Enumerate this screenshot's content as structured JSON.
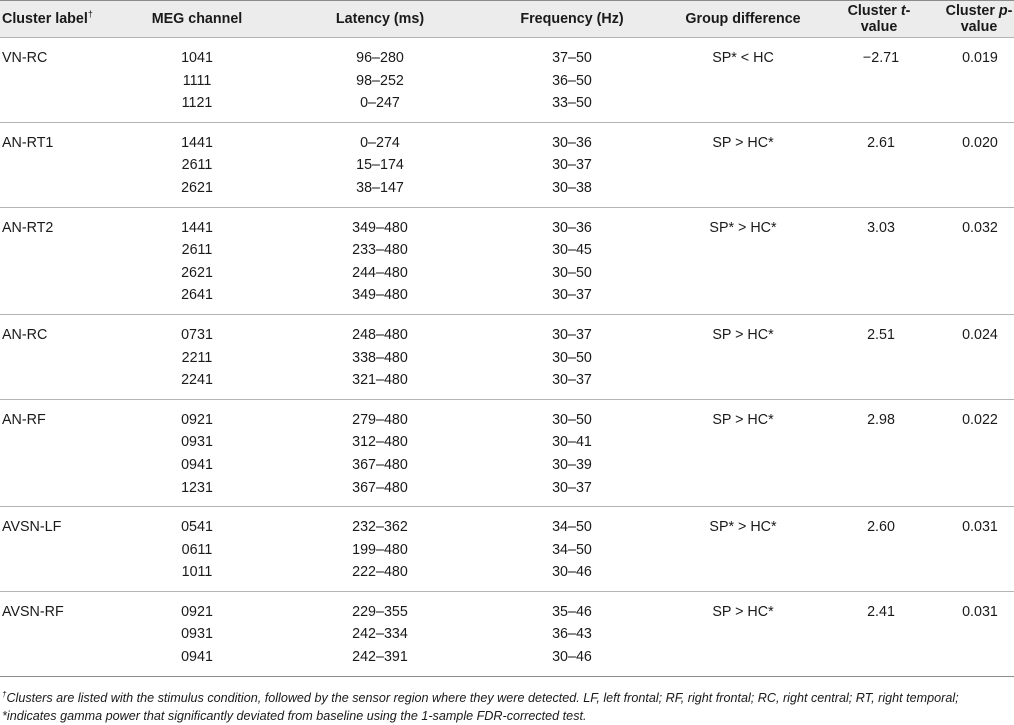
{
  "table": {
    "headers": {
      "cluster_label": "Cluster label",
      "cluster_label_mark": "†",
      "meg_channel": "MEG channel",
      "latency": "Latency (ms)",
      "frequency": "Frequency (Hz)",
      "group_difference": "Group difference",
      "cluster_t_prefix": "Cluster ",
      "cluster_t_var": "t",
      "cluster_t_suffix": "-value",
      "cluster_p_prefix": "Cluster ",
      "cluster_p_var": "p",
      "cluster_p_suffix": "-value"
    },
    "clusters": [
      {
        "label": "VN-RC",
        "group_difference": "SP* < HC",
        "t_value": "−2.71",
        "p_value": "0.019",
        "rows": [
          {
            "channel": "1041",
            "latency": "96–280",
            "frequency": "37–50"
          },
          {
            "channel": "1111",
            "latency": "98–252",
            "frequency": "36–50"
          },
          {
            "channel": "1121",
            "latency": "0–247",
            "frequency": "33–50"
          }
        ]
      },
      {
        "label": "AN-RT1",
        "group_difference": "SP > HC*",
        "t_value": "2.61",
        "p_value": "0.020",
        "rows": [
          {
            "channel": "1441",
            "latency": "0–274",
            "frequency": "30–36"
          },
          {
            "channel": "2611",
            "latency": "15–174",
            "frequency": "30–37"
          },
          {
            "channel": "2621",
            "latency": "38–147",
            "frequency": "30–38"
          }
        ]
      },
      {
        "label": "AN-RT2",
        "group_difference": "SP* > HC*",
        "t_value": "3.03",
        "p_value": "0.032",
        "rows": [
          {
            "channel": "1441",
            "latency": "349–480",
            "frequency": "30–36"
          },
          {
            "channel": "2611",
            "latency": "233–480",
            "frequency": "30–45"
          },
          {
            "channel": "2621",
            "latency": "244–480",
            "frequency": "30–50"
          },
          {
            "channel": "2641",
            "latency": "349–480",
            "frequency": "30–37"
          }
        ]
      },
      {
        "label": "AN-RC",
        "group_difference": "SP > HC*",
        "t_value": "2.51",
        "p_value": "0.024",
        "rows": [
          {
            "channel": "0731",
            "latency": "248–480",
            "frequency": "30–37"
          },
          {
            "channel": "2211",
            "latency": "338–480",
            "frequency": "30–50"
          },
          {
            "channel": "2241",
            "latency": "321–480",
            "frequency": "30–37"
          }
        ]
      },
      {
        "label": "AN-RF",
        "group_difference": "SP > HC*",
        "t_value": "2.98",
        "p_value": "0.022",
        "rows": [
          {
            "channel": "0921",
            "latency": "279–480",
            "frequency": "30–50"
          },
          {
            "channel": "0931",
            "latency": "312–480",
            "frequency": "30–41"
          },
          {
            "channel": "0941",
            "latency": "367–480",
            "frequency": "30–39"
          },
          {
            "channel": "1231",
            "latency": "367–480",
            "frequency": "30–37"
          }
        ]
      },
      {
        "label": "AVSN-LF",
        "group_difference": "SP* > HC*",
        "t_value": "2.60",
        "p_value": "0.031",
        "rows": [
          {
            "channel": "0541",
            "latency": "232–362",
            "frequency": "34–50"
          },
          {
            "channel": "0611",
            "latency": "199–480",
            "frequency": "34–50"
          },
          {
            "channel": "1011",
            "latency": "222–480",
            "frequency": "30–46"
          }
        ]
      },
      {
        "label": "AVSN-RF",
        "group_difference": "SP > HC*",
        "t_value": "2.41",
        "p_value": "0.031",
        "rows": [
          {
            "channel": "0921",
            "latency": "229–355",
            "frequency": "35–46"
          },
          {
            "channel": "0931",
            "latency": "242–334",
            "frequency": "36–43"
          },
          {
            "channel": "0941",
            "latency": "242–391",
            "frequency": "30–46"
          }
        ]
      }
    ]
  },
  "footnote": {
    "mark": "†",
    "text": "Clusters are listed with the stimulus condition, followed by the sensor region where they were detected. LF, left frontal; RF, right frontal; RC, right central; RT, right temporal; *indicates gamma power that significantly deviated from baseline using the 1-sample FDR-corrected test."
  }
}
